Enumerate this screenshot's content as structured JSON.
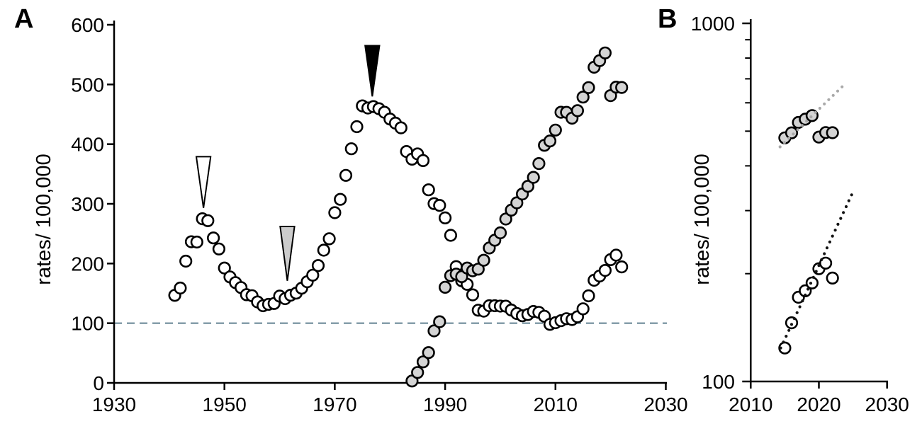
{
  "panel_a": {
    "label": "A",
    "ylabel": "rates/ 100,000"
  },
  "panel_b": {
    "label": "B",
    "ylabel": "rates/ 100,000"
  },
  "colors": {
    "open_marker_fill": "#ffffff",
    "gray_marker_fill": "#d4d4d4",
    "marker_stroke": "#000000",
    "reference_dash": "#7d97a4",
    "gray_trend_dots": "#a9a9a9",
    "black_trend_dots": "#141414"
  },
  "chart_data": [
    {
      "panel": "A",
      "type": "scatter",
      "title": "",
      "x_axis": {
        "min": 1930,
        "max": 2030,
        "ticks": [
          1930,
          1950,
          1970,
          1990,
          2010,
          2030
        ]
      },
      "y_axis": {
        "label": "rates/ 100,000",
        "scale": "linear",
        "min": 0,
        "max": 600,
        "ticks": [
          0,
          100,
          200,
          300,
          400,
          500,
          600
        ]
      },
      "reference_line": {
        "value": 100,
        "color": "#7d97a4",
        "dash": "11 7"
      },
      "arrows": [
        {
          "name": "open-arrowhead-1946",
          "year": 1946.2,
          "tip_value": 293,
          "top_value": 379,
          "half_width_years": 1.3,
          "fill": "#ffffff",
          "outline": "#000000"
        },
        {
          "name": "gray-arrowhead-1961",
          "year": 1961.4,
          "tip_value": 171,
          "top_value": 262,
          "half_width_years": 1.3,
          "fill": "#cccccc",
          "outline": "#000000"
        },
        {
          "name": "black-arrowhead-1977",
          "year": 1976.8,
          "tip_value": 480,
          "top_value": 565,
          "half_width_years": 1.3,
          "fill": "#000000",
          "outline": "#000000"
        }
      ],
      "series": [
        {
          "name": "open-circles",
          "fill": "#ffffff",
          "points": [
            [
              1941,
              146.7
            ],
            [
              1942,
              158.9
            ],
            [
              1943,
              204.0
            ],
            [
              1944,
              236.5
            ],
            [
              1945,
              236.0
            ],
            [
              1946,
              275.0
            ],
            [
              1947,
              271.8
            ],
            [
              1948,
              242.8
            ],
            [
              1949,
              224.3
            ],
            [
              1950,
              192.5
            ],
            [
              1951,
              177.5
            ],
            [
              1952,
              168.0
            ],
            [
              1953,
              159.7
            ],
            [
              1954,
              147.7
            ],
            [
              1955,
              146.1
            ],
            [
              1956,
              135.7
            ],
            [
              1957,
              129.3
            ],
            [
              1958,
              131.6
            ],
            [
              1959,
              133.0
            ],
            [
              1960,
              145.4
            ],
            [
              1961,
              141.1
            ],
            [
              1962,
              146.9
            ],
            [
              1963,
              150.3
            ],
            [
              1964,
              158.6
            ],
            [
              1965,
              169.4
            ],
            [
              1966,
              180.5
            ],
            [
              1967,
              196.6
            ],
            [
              1968,
              222.3
            ],
            [
              1969,
              241.4
            ],
            [
              1970,
              285.2
            ],
            [
              1971,
              307.5
            ],
            [
              1972,
              347.7
            ],
            [
              1973,
              392.2
            ],
            [
              1974,
              429.2
            ],
            [
              1975,
              464.1
            ],
            [
              1976,
              460.6
            ],
            [
              1977,
              462.9
            ],
            [
              1978,
              459.4
            ],
            [
              1979,
              453.4
            ],
            [
              1980,
              442.1
            ],
            [
              1981,
              435.2
            ],
            [
              1982,
              427.4
            ],
            [
              1983,
              387.6
            ],
            [
              1984,
              374.8
            ],
            [
              1985,
              383.6
            ],
            [
              1986,
              372.4
            ],
            [
              1987,
              323.5
            ],
            [
              1988,
              300.3
            ],
            [
              1989,
              297.4
            ],
            [
              1990,
              276.4
            ],
            [
              1991,
              247.2
            ],
            [
              1992,
              194.8
            ],
            [
              1993,
              171.1
            ],
            [
              1994,
              165.1
            ],
            [
              1995,
              147.5
            ],
            [
              1996,
              121.8
            ],
            [
              1997,
              120.2
            ],
            [
              1998,
              129.2
            ],
            [
              1999,
              129.3
            ],
            [
              2000,
              128.7
            ],
            [
              2001,
              128.5
            ],
            [
              2002,
              122.0
            ],
            [
              2003,
              116.2
            ],
            [
              2004,
              112.4
            ],
            [
              2005,
              114.6
            ],
            [
              2006,
              119.7
            ],
            [
              2007,
              118.2
            ],
            [
              2008,
              111.6
            ],
            [
              2009,
              98.1
            ],
            [
              2010,
              100.8
            ],
            [
              2011,
              104.2
            ],
            [
              2012,
              107.5
            ],
            [
              2013,
              106.1
            ],
            [
              2014,
              110.7
            ],
            [
              2015,
              124.0
            ],
            [
              2016,
              145.8
            ],
            [
              2017,
              171.9
            ],
            [
              2018,
              179.1
            ],
            [
              2019,
              188.4
            ],
            [
              2020,
              206.5
            ],
            [
              2021,
              214.0
            ],
            [
              2022,
              194.4
            ]
          ]
        },
        {
          "name": "gray-circles",
          "fill": "#d4d4d4",
          "points": [
            [
              1984,
              3.2
            ],
            [
              1985,
              17.4
            ],
            [
              1986,
              35.2
            ],
            [
              1987,
              50.8
            ],
            [
              1988,
              87.1
            ],
            [
              1989,
              102.5
            ],
            [
              1990,
              160.2
            ],
            [
              1991,
              179.7
            ],
            [
              1992,
              182.3
            ],
            [
              1993,
              178.0
            ],
            [
              1994,
              192.5
            ],
            [
              1995,
              187.8
            ],
            [
              1996,
              190.6
            ],
            [
              1997,
              205.5
            ],
            [
              1998,
              226.0
            ],
            [
              1999,
              239.1
            ],
            [
              2000,
              251.4
            ],
            [
              2001,
              274.5
            ],
            [
              2002,
              289.4
            ],
            [
              2003,
              301.7
            ],
            [
              2004,
              316.5
            ],
            [
              2005,
              329.4
            ],
            [
              2006,
              344.3
            ],
            [
              2007,
              367.5
            ],
            [
              2008,
              398.1
            ],
            [
              2009,
              405.3
            ],
            [
              2010,
              423.6
            ],
            [
              2011,
              453.4
            ],
            [
              2012,
              453.3
            ],
            [
              2013,
              443.5
            ],
            [
              2014,
              456.1
            ],
            [
              2015,
              478.8
            ],
            [
              2016,
              494.7
            ],
            [
              2017,
              528.8
            ],
            [
              2018,
              539.9
            ],
            [
              2019,
              552.8
            ],
            [
              2020,
              481.3
            ],
            [
              2021,
              495.5
            ],
            [
              2022,
              495.0
            ]
          ]
        }
      ]
    },
    {
      "panel": "B",
      "type": "scatter",
      "title": "",
      "x_axis": {
        "min": 2010,
        "max": 2030,
        "ticks": [
          2010,
          2020,
          2030
        ]
      },
      "y_axis": {
        "label": "rates/ 100,000",
        "scale": "log",
        "min": 100,
        "max": 1000,
        "ticks": [
          100,
          1000
        ],
        "minor_ticks": [
          200,
          300,
          400,
          500,
          600,
          700,
          800,
          900
        ]
      },
      "series": [
        {
          "name": "gray-circles",
          "fill": "#d4d4d4",
          "points": [
            [
              2015,
              478.8
            ],
            [
              2016,
              494.7
            ],
            [
              2017,
              528.8
            ],
            [
              2018,
              539.9
            ],
            [
              2019,
              552.8
            ],
            [
              2020,
              481.3
            ],
            [
              2021,
              495.5
            ],
            [
              2022,
              495.0
            ]
          ]
        },
        {
          "name": "open-circles",
          "fill": "#ffffff",
          "points": [
            [
              2015,
              124.0
            ],
            [
              2016,
              145.8
            ],
            [
              2017,
              171.9
            ],
            [
              2018,
              179.1
            ],
            [
              2019,
              188.4
            ],
            [
              2020,
              206.5
            ],
            [
              2021,
              214.0
            ],
            [
              2022,
              194.4
            ]
          ]
        }
      ],
      "trend_lines": [
        {
          "name": "gray-dotted-trend",
          "start": [
            2014.3,
            452
          ],
          "end": [
            2023.4,
            665
          ],
          "color": "#a9a9a9"
        },
        {
          "name": "black-dotted-trend",
          "start": [
            2014.4,
            124
          ],
          "end": [
            2024.8,
            332
          ],
          "color": "#141414"
        }
      ]
    }
  ]
}
